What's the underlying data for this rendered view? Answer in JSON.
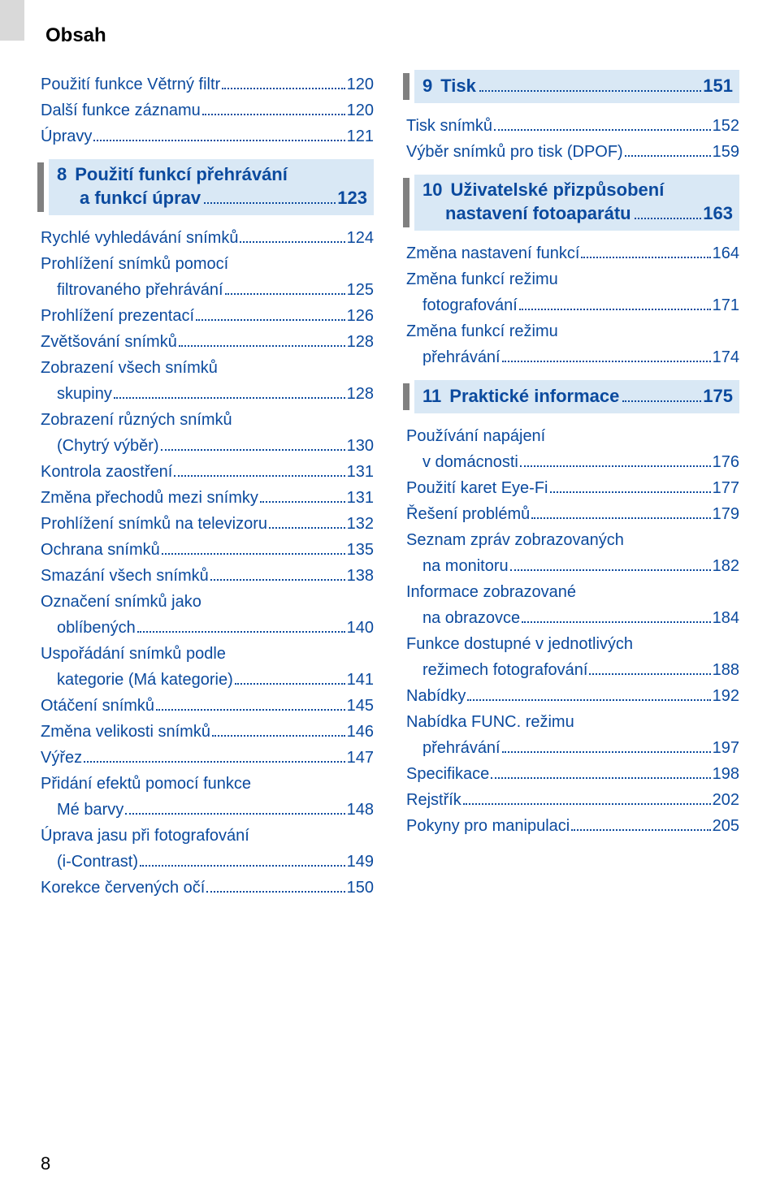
{
  "colors": {
    "link_blue": "#0b4a9e",
    "chapter_bg": "#d9e8f5",
    "chapter_bar": "#808080",
    "text": "#000000",
    "page_bg": "#ffffff",
    "outer_bg": "#e6e6e6",
    "tab_bg": "#d9d9d9"
  },
  "typography": {
    "header_fontsize_pt": 18,
    "entry_fontsize_pt": 15,
    "chapter_fontsize_pt": 16
  },
  "header": "Obsah",
  "page_number": "8",
  "columns": [
    {
      "items": [
        {
          "type": "entry",
          "label": "Použití funkce Větrný filtr",
          "page": "120",
          "color": "link"
        },
        {
          "type": "entry",
          "label": "Další funkce záznamu",
          "page": "120",
          "color": "link"
        },
        {
          "type": "entry",
          "label": "Úpravy",
          "page": "121",
          "color": "link"
        },
        {
          "type": "chapter",
          "num": "8",
          "title_lines": [
            "Použití funkcí přehrávání",
            "a funkcí úprav"
          ],
          "page": "123"
        },
        {
          "type": "entry",
          "label": "Rychlé vyhledávání snímků",
          "page": "124",
          "color": "link"
        },
        {
          "type": "entry",
          "lines": [
            "Prohlížení snímků pomocí",
            "filtrovaného přehrávání"
          ],
          "page": "125",
          "color": "link",
          "indent_cont": true
        },
        {
          "type": "entry",
          "label": "Prohlížení prezentací",
          "page": "126",
          "color": "link"
        },
        {
          "type": "entry",
          "label": "Zvětšování snímků",
          "page": "128",
          "color": "link"
        },
        {
          "type": "entry",
          "lines": [
            "Zobrazení všech snímků",
            "skupiny"
          ],
          "page": "128",
          "color": "link",
          "indent_cont": true
        },
        {
          "type": "entry",
          "lines": [
            "Zobrazení různých snímků",
            "(Chytrý výběr)"
          ],
          "page": "130",
          "color": "link",
          "indent_cont": true
        },
        {
          "type": "entry",
          "label": "Kontrola zaostření",
          "page": "131",
          "color": "link"
        },
        {
          "type": "entry",
          "label": "Změna přechodů mezi snímky",
          "page": "131",
          "color": "link"
        },
        {
          "type": "entry",
          "label": "Prohlížení snímků na televizoru",
          "page": "132",
          "color": "link"
        },
        {
          "type": "entry",
          "label": "Ochrana snímků",
          "page": "135",
          "color": "link"
        },
        {
          "type": "entry",
          "label": "Smazání všech snímků",
          "page": "138",
          "color": "link"
        },
        {
          "type": "entry",
          "lines": [
            "Označení snímků jako",
            "oblíbených"
          ],
          "page": "140",
          "color": "link",
          "indent_cont": true
        },
        {
          "type": "entry",
          "lines": [
            "Uspořádání snímků podle",
            "kategorie (Má kategorie)"
          ],
          "page": "141",
          "color": "link",
          "indent_cont": true
        },
        {
          "type": "entry",
          "label": "Otáčení snímků",
          "page": "145",
          "color": "link"
        },
        {
          "type": "entry",
          "label": "Změna velikosti snímků",
          "page": "146",
          "color": "link"
        },
        {
          "type": "entry",
          "label": "Výřez",
          "page": "147",
          "color": "link"
        },
        {
          "type": "entry",
          "lines": [
            "Přidání efektů pomocí funkce",
            "Mé barvy"
          ],
          "page": "148",
          "color": "link",
          "indent_cont": true
        },
        {
          "type": "entry",
          "lines": [
            "Úprava jasu při fotografování",
            "(i-Contrast)"
          ],
          "page": "149",
          "color": "link",
          "indent_cont": true
        },
        {
          "type": "entry",
          "label": "Korekce červených očí",
          "page": "150",
          "color": "link"
        }
      ]
    },
    {
      "items": [
        {
          "type": "chapter",
          "num": "9",
          "title_lines": [
            "Tisk"
          ],
          "page": "151",
          "no_top_margin": true
        },
        {
          "type": "entry",
          "label": "Tisk snímků",
          "page": "152",
          "color": "link"
        },
        {
          "type": "entry",
          "label": "Výběr snímků pro tisk (DPOF)",
          "page": "159",
          "color": "link"
        },
        {
          "type": "chapter",
          "num": "10",
          "title_lines": [
            "Uživatelské přizpůsobení",
            "nastavení fotoaparátu"
          ],
          "page": "163"
        },
        {
          "type": "entry",
          "label": "Změna nastavení funkcí",
          "page": "164",
          "color": "link"
        },
        {
          "type": "entry",
          "lines": [
            "Změna funkcí režimu",
            "fotografování"
          ],
          "page": "171",
          "color": "link",
          "indent_cont": true
        },
        {
          "type": "entry",
          "lines": [
            "Změna funkcí režimu",
            "přehrávání"
          ],
          "page": "174",
          "color": "link",
          "indent_cont": true
        },
        {
          "type": "chapter",
          "num": "11",
          "title_lines": [
            "Praktické informace"
          ],
          "page": "175"
        },
        {
          "type": "entry",
          "lines": [
            "Používání napájení",
            "v domácnosti"
          ],
          "page": "176",
          "color": "link",
          "indent_cont": true
        },
        {
          "type": "entry",
          "label": "Použití karet Eye-Fi",
          "page": "177",
          "color": "link"
        },
        {
          "type": "entry",
          "label": "Řešení problémů",
          "page": "179",
          "color": "link"
        },
        {
          "type": "entry",
          "lines": [
            "Seznam zpráv zobrazovaných",
            "na monitoru"
          ],
          "page": "182",
          "color": "link",
          "indent_cont": true
        },
        {
          "type": "entry",
          "lines": [
            "Informace zobrazované",
            "na obrazovce"
          ],
          "page": "184",
          "color": "link",
          "indent_cont": true
        },
        {
          "type": "entry",
          "lines": [
            "Funkce dostupné v jednotlivých",
            "režimech fotografování"
          ],
          "page": "188",
          "color": "link",
          "indent_cont": true
        },
        {
          "type": "entry",
          "label": "Nabídky",
          "page": "192",
          "color": "link"
        },
        {
          "type": "entry",
          "lines": [
            "Nabídka FUNC. režimu",
            "přehrávání"
          ],
          "page": "197",
          "color": "link",
          "indent_cont": true
        },
        {
          "type": "entry",
          "label": "Specifikace",
          "page": "198",
          "color": "link"
        },
        {
          "type": "entry",
          "label": "Rejstřík",
          "page": "202",
          "color": "link"
        },
        {
          "type": "entry",
          "label": "Pokyny pro manipulaci",
          "page": "205",
          "color": "link"
        }
      ]
    }
  ]
}
